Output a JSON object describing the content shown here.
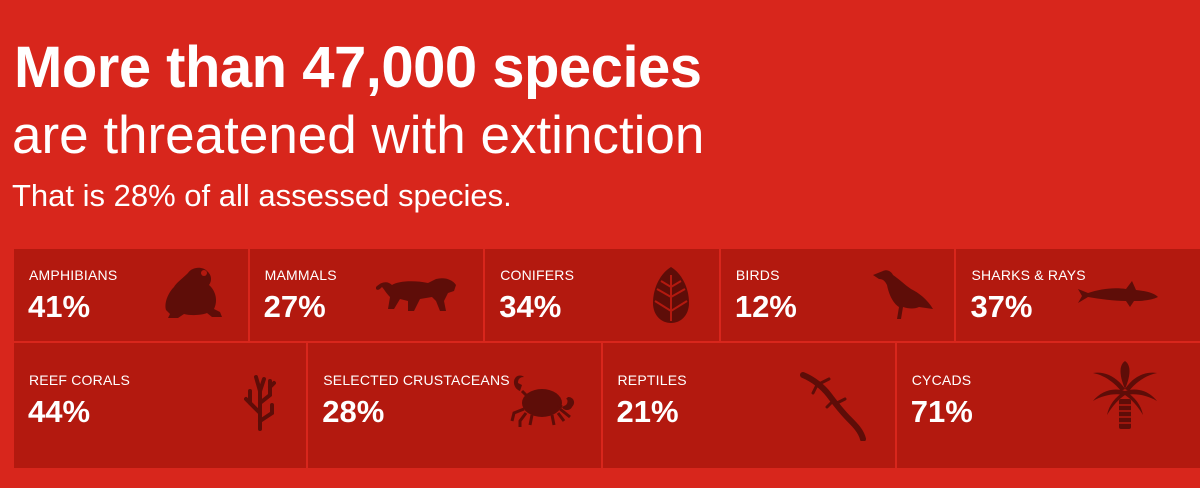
{
  "header": {
    "headline": "More than 47,000 species",
    "subline": "are threatened with extinction",
    "stat_line": "That is 28% of all assessed species."
  },
  "categories": [
    {
      "label": "AMPHIBIANS",
      "value": "41%",
      "icon": "frog-icon"
    },
    {
      "label": "MAMMALS",
      "value": "27%",
      "icon": "tiger-icon"
    },
    {
      "label": "CONIFERS",
      "value": "34%",
      "icon": "pinecone-icon"
    },
    {
      "label": "BIRDS",
      "value": "12%",
      "icon": "bird-icon"
    },
    {
      "label": "SHARKS & RAYS",
      "value": "37%",
      "icon": "shark-icon"
    },
    {
      "label": "REEF CORALS",
      "value": "44%",
      "icon": "coral-icon"
    },
    {
      "label": "SELECTED CRUSTACEANS",
      "value": "28%",
      "icon": "crab-icon"
    },
    {
      "label": "REPTILES",
      "value": "21%",
      "icon": "lizard-icon"
    },
    {
      "label": "CYCADS",
      "value": "71%",
      "icon": "palm-icon"
    }
  ],
  "colors": {
    "background": "#d8261c",
    "tile": "#b3190f",
    "icon": "#5e0d08",
    "text": "#ffffff"
  }
}
